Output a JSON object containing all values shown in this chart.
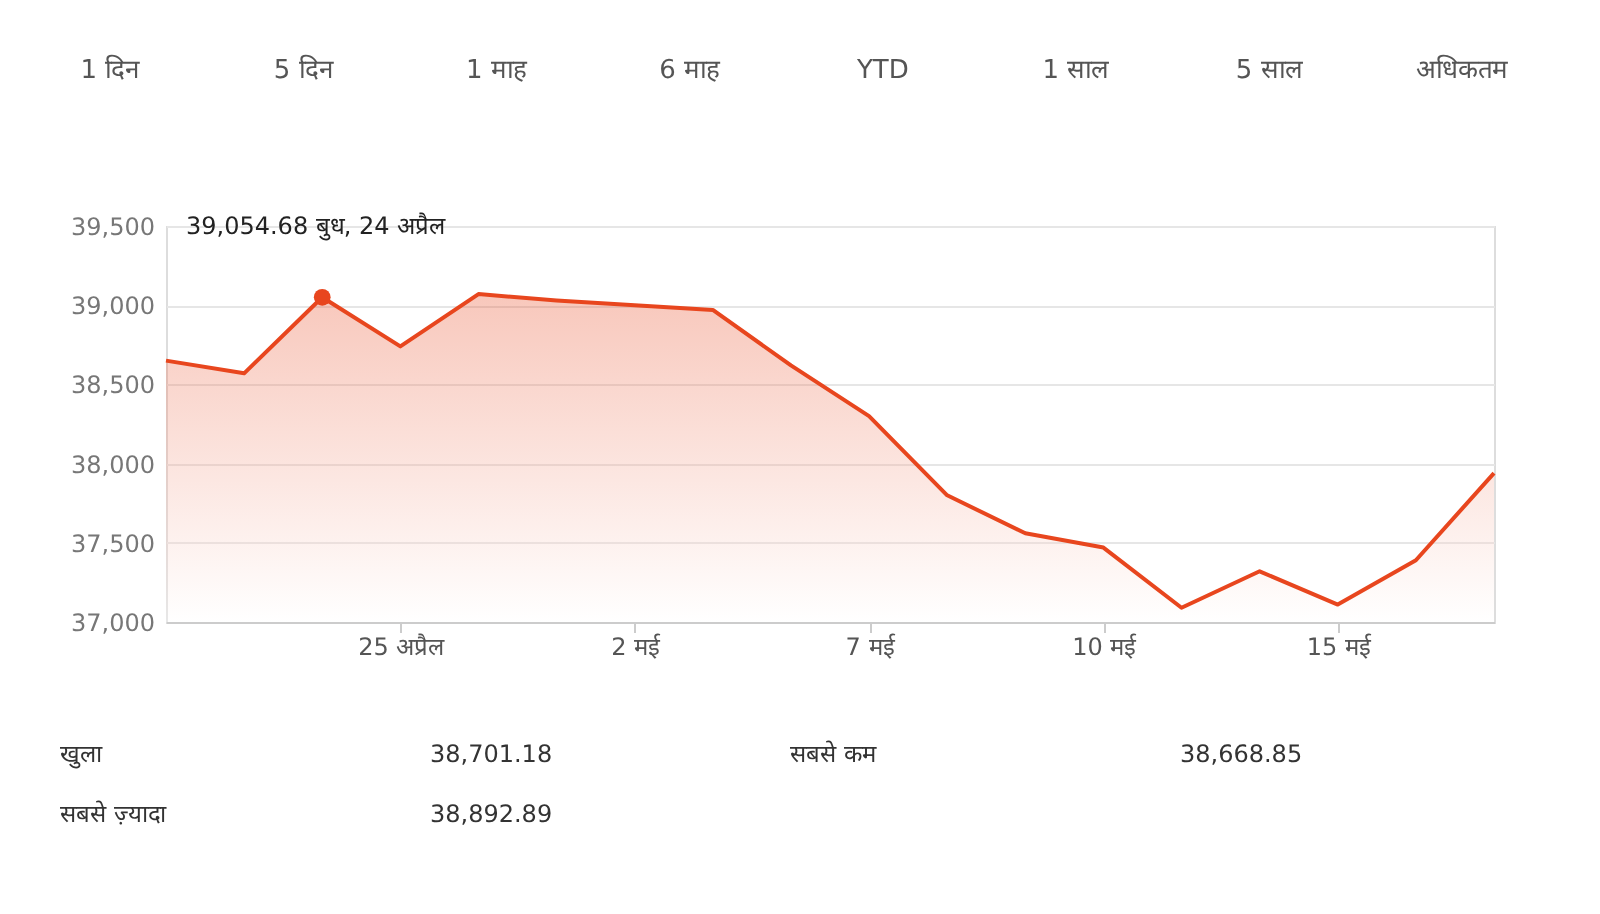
{
  "chart_data": {
    "type": "area",
    "categories": [
      null,
      null,
      null,
      "25 अप्रैल",
      null,
      null,
      "2 मई",
      null,
      null,
      "7 मई",
      null,
      null,
      "10 मई",
      null,
      null,
      "15 मई",
      null,
      null
    ],
    "series": [
      {
        "color": "#e8461e",
        "values": [
          38650,
          38570,
          39050,
          38740,
          39070,
          39030,
          39000,
          38970,
          38620,
          38300,
          37800,
          37560,
          37470,
          37090,
          37320,
          37110,
          37390,
          37940
        ]
      },
      {
        "type": "scatter",
        "color": "#e8461e",
        "marker": "circle",
        "values": [
          null,
          null,
          39050,
          null,
          null,
          null,
          null,
          null,
          null,
          null,
          null,
          null,
          null,
          null,
          null,
          null,
          null,
          null
        ]
      }
    ],
    "ylim": [
      37000,
      39500
    ],
    "yticks": [
      {
        "value": 37000,
        "label": "37,000"
      },
      {
        "value": 37500,
        "label": "37,500"
      },
      {
        "value": 38000,
        "label": "38,000"
      },
      {
        "value": 38500,
        "label": "38,500"
      },
      {
        "value": 39000,
        "label": "39,000"
      },
      {
        "value": 39500,
        "label": "39,500"
      }
    ],
    "grid": "y",
    "annotations": [
      "39,054.68  बुध, 24 अप्रैल",
      "1 दिन",
      "5 दिन",
      "1 माह",
      "6 माह",
      "YTD",
      "1 साल",
      "5 साल",
      "अधिकतम",
      "खुला",
      "38,701.18",
      "सबसे कम",
      "38,668.85",
      "सबसे ज़्यादा",
      "38,892.89"
    ]
  }
}
